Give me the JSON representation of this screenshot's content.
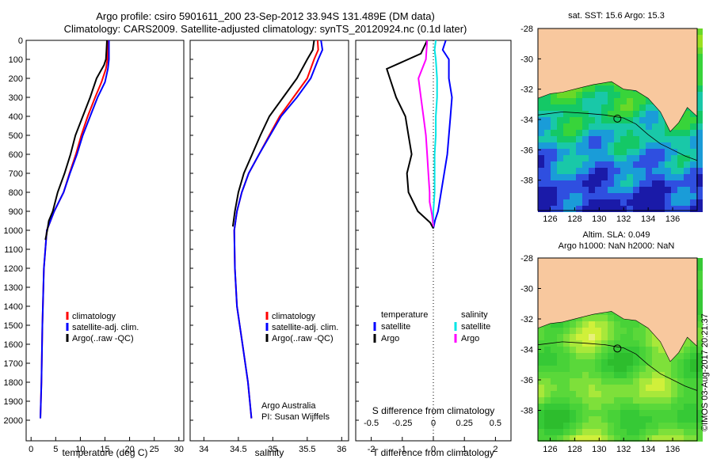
{
  "title": {
    "line1": "Argo profile: csiro 5901611_200 23-Sep-2012 33.94S 131.489E (DM data)",
    "line2": "Climatology: CARS2009. Satellite-adjusted climatology: synTS_20120924.nc (0.1d later)"
  },
  "colors": {
    "climatology": "#ff0000",
    "satellite": "#0000ff",
    "argo": "#000000",
    "salinity_satellite": "#00e5e5",
    "salinity_argo": "#ff00ff",
    "land": "#f8c89e"
  },
  "chart_data": [
    {
      "type": "line",
      "name": "temperature-profile",
      "xlabel": "temperature (deg C)",
      "ylabel": "",
      "xlim": [
        -1,
        31
      ],
      "ylim": [
        2100,
        0
      ],
      "xticks": [
        0,
        5,
        10,
        15,
        20,
        25,
        30
      ],
      "yticks": [
        0,
        100,
        200,
        300,
        400,
        500,
        600,
        700,
        800,
        900,
        1000,
        1100,
        1200,
        1300,
        1400,
        1500,
        1600,
        1700,
        1800,
        1900,
        2000
      ],
      "legend": [
        "climatology",
        "satellite-adj. clim.",
        "Argo(..raw -QC)"
      ],
      "legend_position": "lower-center",
      "series": [
        {
          "name": "climatology",
          "x": [
            15.6,
            15.6,
            15.5,
            15.2,
            14.3,
            13,
            11.5,
            10.2,
            9.1,
            7.8,
            6.6,
            4.7,
            3.2,
            2.6,
            2.3,
            2.1,
            1.9
          ],
          "y": [
            0,
            50,
            100,
            150,
            220,
            300,
            400,
            500,
            600,
            700,
            800,
            900,
            1000,
            1200,
            1500,
            1800,
            1990
          ]
        },
        {
          "name": "satellite-adj. clim.",
          "x": [
            15.8,
            15.8,
            15.8,
            15.6,
            15,
            13.5,
            12,
            10.5,
            9.3,
            7.9,
            6.6,
            4.7,
            3.2,
            2.6,
            2.3,
            2.1,
            1.9
          ],
          "y": [
            0,
            50,
            100,
            150,
            220,
            300,
            400,
            500,
            600,
            700,
            800,
            900,
            1000,
            1200,
            1500,
            1800,
            1990
          ]
        },
        {
          "name": "Argo(..raw -QC)",
          "x": [
            15.4,
            15.3,
            15.2,
            14.8,
            13.3,
            12,
            10.5,
            9,
            8,
            6.8,
            5.4,
            4.4,
            3.6,
            3.3,
            2.9
          ],
          "y": [
            0,
            50,
            100,
            130,
            200,
            300,
            400,
            500,
            600,
            700,
            800,
            900,
            950,
            1000,
            1050
          ]
        }
      ]
    },
    {
      "type": "line",
      "name": "salinity-profile",
      "xlabel": "salinity",
      "ylabel": "",
      "xlim": [
        33.8,
        36.1
      ],
      "ylim": [
        2100,
        0
      ],
      "xticks": [
        34,
        34.5,
        35,
        35.5,
        36
      ],
      "legend": [
        "climatology",
        "satellite-adj. clim.",
        "Argo(..raw -QC)"
      ],
      "legend_position": "lower-right",
      "annotations": [
        "Argo Australia",
        "PI: Susan Wijffels"
      ],
      "series": [
        {
          "name": "climatology",
          "x": [
            35.65,
            35.66,
            35.6,
            35.5,
            35.3,
            35.1,
            34.95,
            34.8,
            34.65,
            34.55,
            34.48,
            34.44,
            34.45,
            34.48,
            34.56,
            34.64,
            34.69
          ],
          "y": [
            0,
            50,
            100,
            200,
            300,
            400,
            500,
            600,
            700,
            800,
            900,
            1000,
            1200,
            1400,
            1600,
            1800,
            1990
          ]
        },
        {
          "name": "satellite-adj. clim.",
          "x": [
            35.7,
            35.72,
            35.66,
            35.55,
            35.35,
            35.12,
            34.96,
            34.8,
            34.65,
            34.55,
            34.48,
            34.44,
            34.45,
            34.48,
            34.56,
            34.64,
            34.69
          ],
          "y": [
            0,
            50,
            100,
            200,
            300,
            400,
            500,
            600,
            700,
            800,
            900,
            1000,
            1200,
            1400,
            1600,
            1800,
            1990
          ]
        },
        {
          "name": "Argo(..raw -QC)",
          "x": [
            35.6,
            35.58,
            35.5,
            35.35,
            35.15,
            34.95,
            34.82,
            34.7,
            34.58,
            34.5,
            34.45,
            34.42
          ],
          "y": [
            0,
            50,
            100,
            200,
            300,
            400,
            500,
            600,
            700,
            800,
            900,
            980
          ]
        }
      ]
    },
    {
      "type": "line",
      "name": "difference-profile",
      "xlabel": "T difference from climatology",
      "xlabel2": "S difference from climatology",
      "xlim": [
        -2.5,
        2.5
      ],
      "x2lim": [
        -0.625,
        0.625
      ],
      "ylim": [
        2100,
        0
      ],
      "xticks": [
        -2,
        -1,
        0,
        1,
        2
      ],
      "x2ticks": [
        "-0.5",
        "-0.25",
        "0",
        "0.25",
        "0.5"
      ],
      "x2tick_values": [
        -0.5,
        -0.25,
        0,
        0.25,
        0.5
      ],
      "legend_position": "lower-center",
      "legend": {
        "temperature_heading": "temperature",
        "salinity_heading": "salinity",
        "temperature": [
          "satellite",
          "Argo"
        ],
        "salinity": [
          "satellite",
          "Argo"
        ]
      },
      "series": [
        {
          "name": "temperature satellite",
          "x": [
            0.4,
            0.3,
            0.5,
            0.5,
            0.6,
            0.55,
            0.5,
            0.45,
            0.35,
            0.25,
            0.15,
            0.05,
            0
          ],
          "y": [
            0,
            50,
            100,
            200,
            300,
            400,
            500,
            600,
            700,
            800,
            900,
            950,
            990
          ]
        },
        {
          "name": "temperature Argo",
          "x": [
            -0.2,
            -0.4,
            -1.5,
            -1.4,
            -1.2,
            -0.9,
            -0.8,
            -0.7,
            -0.85,
            -0.8,
            -0.5,
            -0.1,
            0
          ],
          "y": [
            0,
            70,
            150,
            200,
            300,
            400,
            500,
            600,
            700,
            800,
            900,
            960,
            990
          ]
        },
        {
          "name": "salinity satellite",
          "x": [
            0.02,
            0.01,
            0.02,
            0.03,
            0.03,
            0.02,
            0.02,
            0.01,
            0.01,
            0.01,
            0,
            0
          ],
          "y": [
            0,
            50,
            100,
            200,
            300,
            400,
            500,
            600,
            700,
            800,
            900,
            980
          ]
        },
        {
          "name": "salinity Argo",
          "x": [
            -0.05,
            -0.06,
            -0.12,
            -0.1,
            -0.08,
            -0.06,
            -0.05,
            -0.04,
            -0.03,
            -0.03,
            -0.01,
            0
          ],
          "y": [
            0,
            100,
            200,
            300,
            400,
            500,
            600,
            700,
            800,
            850,
            920,
            980
          ]
        }
      ]
    },
    {
      "type": "heatmap",
      "name": "sst-map",
      "title": "sat. SST: 15.6 Argo: 15.3",
      "xlim": [
        125,
        138
      ],
      "ylim": [
        -40,
        -28
      ],
      "xticks": [
        126,
        128,
        130,
        132,
        134,
        136
      ],
      "yticks": [
        -28,
        -30,
        -32,
        -34,
        -36,
        -38
      ],
      "float_position": {
        "lon": 131.489,
        "lat": -33.94
      }
    },
    {
      "type": "heatmap",
      "name": "sla-map",
      "title": "Altim. SLA: 0.049",
      "title2": "Argo h1000: NaN h2000: NaN",
      "xlim": [
        125,
        138
      ],
      "ylim": [
        -40,
        -28
      ],
      "xticks": [
        126,
        128,
        130,
        132,
        134,
        136
      ],
      "yticks": [
        -28,
        -30,
        -32,
        -34,
        -36,
        -38
      ],
      "float_position": {
        "lon": 131.489,
        "lat": -33.94
      }
    }
  ],
  "credit": "©IMOS 03-Aug-2017 20:21:37"
}
